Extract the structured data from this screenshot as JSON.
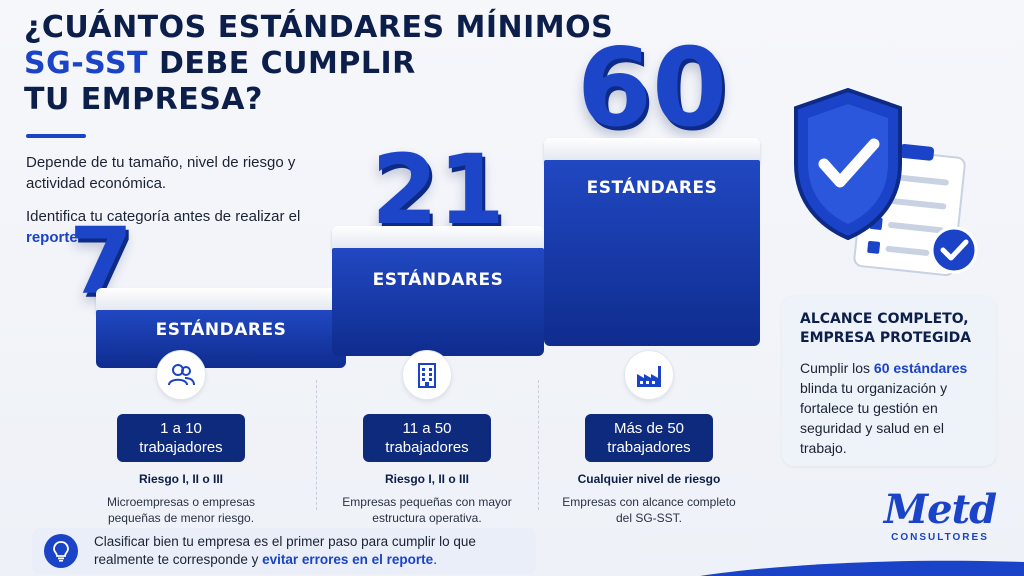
{
  "title": {
    "line1": "¿CUÁNTOS ESTÁNDARES MÍNIMOS",
    "line2": "SG-SST",
    "line2_rest": " DEBE CUMPLIR",
    "line3": "TU EMPRESA?"
  },
  "intro": {
    "p1": "Depende de tu tamaño, nivel de riesgo y actividad económica.",
    "p2_before": "Identifica tu categoría antes de realizar el ",
    "p2_highlight": "reporte 2026",
    "p2_after": "."
  },
  "podium": [
    {
      "number": "7",
      "label": "ESTÁNDARES"
    },
    {
      "number": "21",
      "label": "ESTÁNDARES"
    },
    {
      "number": "60",
      "label": "ESTÁNDARES"
    }
  ],
  "columns": [
    {
      "icon": "people-icon",
      "range": "1 a 10",
      "unit": "trabajadores",
      "risk": "Riesgo I, II o III",
      "desc": "Microempresas o empresas pequeñas de menor riesgo."
    },
    {
      "icon": "building-icon",
      "range": "11 a 50",
      "unit": "trabajadores",
      "risk": "Riesgo I, II o III",
      "desc": "Empresas pequeñas con mayor estructura operativa."
    },
    {
      "icon": "factory-icon",
      "range": "Más de 50",
      "unit": "trabajadores",
      "risk": "Cualquier nivel de riesgo",
      "desc": "Empresas con alcance completo del SG-SST."
    }
  ],
  "info_card": {
    "heading": "ALCANCE COMPLETO, EMPRESA PROTEGIDA",
    "before": "Cumplir los ",
    "highlight": "60 estándares",
    "after": " blinda tu organización y fortalece tu gestión en seguridad y salud en el trabajo."
  },
  "footer": {
    "before": "Clasificar bien tu empresa es el primer paso para cumplir lo que realmente te corresponde y ",
    "highlight": "evitar errores en el reporte",
    "after": "."
  },
  "logo": {
    "mark": "Metd",
    "sub": "CONSULTORES"
  },
  "colors": {
    "brand_blue": "#1a43c7",
    "navy": "#0c1e4a",
    "pill": "#0e2a7d"
  }
}
